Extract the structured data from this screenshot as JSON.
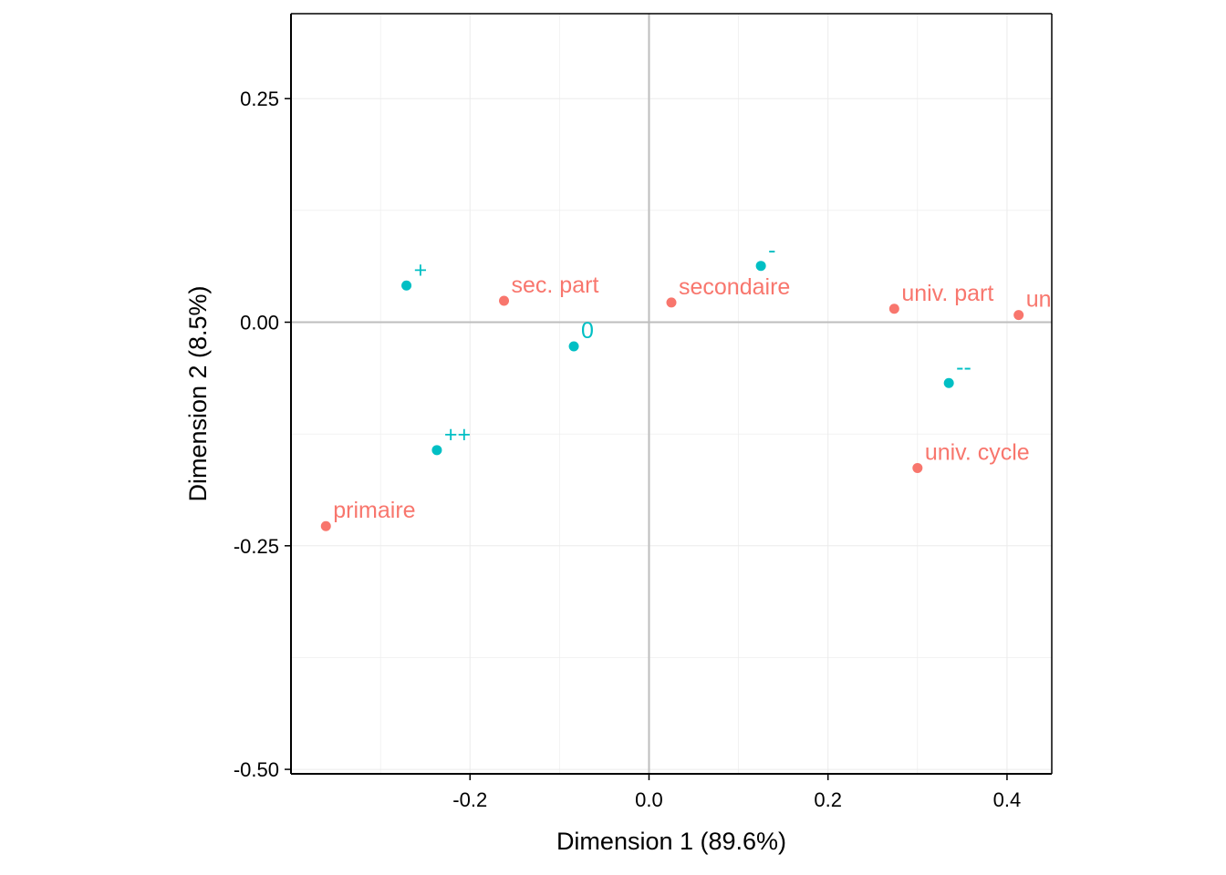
{
  "chart_data": {
    "type": "scatter",
    "title": "",
    "xlabel": "Dimension 1 (89.6%)",
    "ylabel": "Dimension 2 (8.5%)",
    "xlim": [
      -0.4,
      0.45
    ],
    "ylim": [
      -0.505,
      0.345
    ],
    "x_ticks": [
      -0.2,
      0.0,
      0.2,
      0.4
    ],
    "x_tick_labels": [
      "-0.2",
      "0.0",
      "0.2",
      "0.4"
    ],
    "y_ticks": [
      -0.5,
      -0.25,
      0.0,
      0.25
    ],
    "y_tick_labels": [
      "-0.50",
      "-0.25",
      "0.00",
      "0.25"
    ],
    "grid": true,
    "reference_lines": {
      "x": 0,
      "y": 0
    },
    "colors": {
      "group1": "#F8766D",
      "group2": "#00BFC4",
      "refline": "#BEBEBE",
      "grid": "#EBEBEB"
    },
    "series": [
      {
        "color": "#F8766D",
        "points": [
          {
            "label": "sec. part",
            "x": -0.162,
            "y": 0.024
          },
          {
            "label": "secondaire",
            "x": 0.025,
            "y": 0.022
          },
          {
            "label": "univ. part",
            "x": 0.274,
            "y": 0.015
          },
          {
            "label": "univ. ",
            "x": 0.413,
            "y": 0.008
          },
          {
            "label": "univ. cycle",
            "x": 0.3,
            "y": -0.163
          },
          {
            "label": "primaire",
            "x": -0.361,
            "y": -0.228
          }
        ]
      },
      {
        "color": "#00BFC4",
        "points": [
          {
            "label": "+",
            "x": -0.271,
            "y": 0.041
          },
          {
            "label": "-",
            "x": 0.125,
            "y": 0.063
          },
          {
            "label": "0",
            "x": -0.084,
            "y": -0.027
          },
          {
            "label": "--",
            "x": 0.335,
            "y": -0.068
          },
          {
            "label": "++",
            "x": -0.237,
            "y": -0.143
          }
        ]
      }
    ]
  }
}
